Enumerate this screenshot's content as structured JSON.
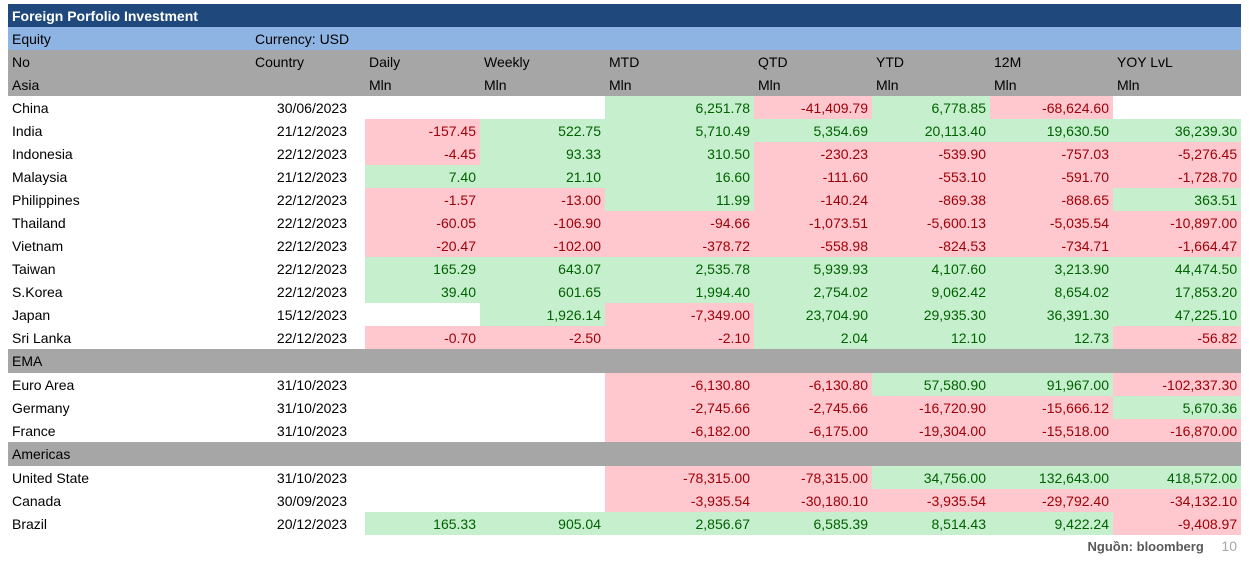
{
  "title": "Foreign Porfolio Investment",
  "subtitle": {
    "left": "Equity",
    "currency": "Currency: USD"
  },
  "headers": {
    "row1": [
      "No",
      "Country",
      "Daily",
      "Weekly",
      "MTD",
      "QTD",
      "YTD",
      "12M",
      "YOY LvL"
    ],
    "row2": [
      "Asia",
      "",
      "Mln",
      "Mln",
      "Mln",
      "Mln",
      "Mln",
      "Mln",
      "Mln"
    ]
  },
  "sections": [
    {
      "name": "Asia",
      "header_row": true,
      "rows": [
        {
          "country": "China",
          "date": "30/06/2023",
          "vals": [
            "",
            "",
            "6,251.78",
            "-41,409.79",
            "6,778.85",
            "-68,624.60",
            ""
          ]
        },
        {
          "country": "India",
          "date": "21/12/2023",
          "vals": [
            "-157.45",
            "522.75",
            "5,710.49",
            "5,354.69",
            "20,113.40",
            "19,630.50",
            "36,239.30"
          ]
        },
        {
          "country": "Indonesia",
          "date": "22/12/2023",
          "vals": [
            "-4.45",
            "93.33",
            "310.50",
            "-230.23",
            "-539.90",
            "-757.03",
            "-5,276.45"
          ]
        },
        {
          "country": "Malaysia",
          "date": "21/12/2023",
          "vals": [
            "7.40",
            "21.10",
            "16.60",
            "-111.60",
            "-553.10",
            "-591.70",
            "-1,728.70"
          ]
        },
        {
          "country": "Philippines",
          "date": "22/12/2023",
          "vals": [
            "-1.57",
            "-13.00",
            "11.99",
            "-140.24",
            "-869.38",
            "-868.65",
            "363.51"
          ]
        },
        {
          "country": "Thailand",
          "date": "22/12/2023",
          "vals": [
            "-60.05",
            "-106.90",
            "-94.66",
            "-1,073.51",
            "-5,600.13",
            "-5,035.54",
            "-10,897.00"
          ]
        },
        {
          "country": "Vietnam",
          "date": "22/12/2023",
          "vals": [
            "-20.47",
            "-102.00",
            "-378.72",
            "-558.98",
            "-824.53",
            "-734.71",
            "-1,664.47"
          ]
        },
        {
          "country": "Taiwan",
          "date": "22/12/2023",
          "vals": [
            "165.29",
            "643.07",
            "2,535.78",
            "5,939.93",
            "4,107.60",
            "3,213.90",
            "44,474.50"
          ]
        },
        {
          "country": "S.Korea",
          "date": "22/12/2023",
          "vals": [
            "39.40",
            "601.65",
            "1,994.40",
            "2,754.02",
            "9,062.42",
            "8,654.02",
            "17,853.20"
          ]
        },
        {
          "country": "Japan",
          "date": "15/12/2023",
          "vals": [
            "",
            "1,926.14",
            "-7,349.00",
            "23,704.90",
            "29,935.30",
            "36,391.30",
            "47,225.10"
          ]
        },
        {
          "country": "Sri Lanka",
          "date": "22/12/2023",
          "vals": [
            "-0.70",
            "-2.50",
            "-2.10",
            "2.04",
            "12.10",
            "12.73",
            "-56.82"
          ]
        }
      ]
    },
    {
      "name": "EMA",
      "rows": [
        {
          "country": "Euro Area",
          "date": "31/10/2023",
          "vals": [
            "",
            "",
            "-6,130.80",
            "-6,130.80",
            "57,580.90",
            "91,967.00",
            "-102,337.30"
          ]
        },
        {
          "country": "Germany",
          "date": "31/10/2023",
          "vals": [
            "",
            "",
            "-2,745.66",
            "-2,745.66",
            "-16,720.90",
            "-15,666.12",
            "5,670.36"
          ]
        },
        {
          "country": "France",
          "date": "31/10/2023",
          "vals": [
            "",
            "",
            "-6,182.00",
            "-6,175.00",
            "-19,304.00",
            "-15,518.00",
            "-16,870.00"
          ]
        }
      ]
    },
    {
      "name": "Americas",
      "rows": [
        {
          "country": "United State",
          "date": "31/10/2023",
          "vals": [
            "",
            "",
            "-78,315.00",
            "-78,315.00",
            "34,756.00",
            "132,643.00",
            "418,572.00"
          ]
        },
        {
          "country": "Canada",
          "date": "30/09/2023",
          "vals": [
            "",
            "",
            "-3,935.54",
            "-30,180.10",
            "-3,935.54",
            "-29,792.40",
            "-34,132.10"
          ]
        },
        {
          "country": "Brazil",
          "date": "20/12/2023",
          "vals": [
            "165.33",
            "905.04",
            "2,856.67",
            "6,585.39",
            "8,514.43",
            "9,422.24",
            "-9,408.97"
          ]
        }
      ]
    }
  ],
  "footer": {
    "source": "Nguồn: bloomberg",
    "page": "10"
  },
  "colors": {
    "title_bg": "#1f497d",
    "sub_bg": "#8eb4e3",
    "header_bg": "#a6a6a6",
    "pos_bg": "#c6efce",
    "pos_text": "#006100",
    "neg_bg": "#ffc7ce",
    "neg_text": "#9c0006"
  }
}
